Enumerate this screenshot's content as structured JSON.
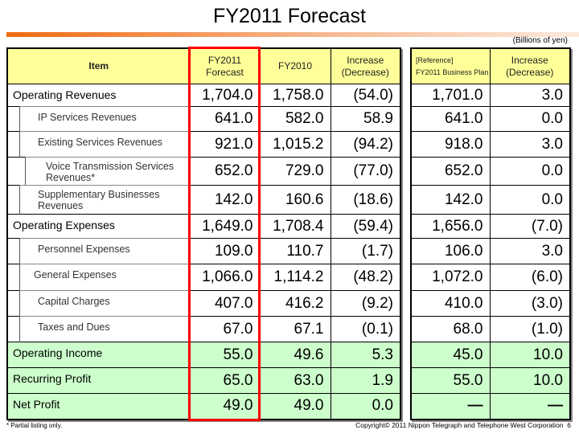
{
  "title": "FY2011 Forecast",
  "unit": "(Billions of yen)",
  "headers": {
    "item": "Item",
    "forecast": "FY2011 Forecast",
    "fy2010": "FY2010",
    "increase": "Increase (Decrease)",
    "reference_line1": "[Reference]",
    "reference_line2": "FY2011 Business Plan",
    "ref_increase": "Increase (Decrease)"
  },
  "rows": [
    {
      "label": "Operating Revenues",
      "forecast": "1,704.0",
      "fy2010": "1,758.0",
      "increase": "(54.0)",
      "plan": "1,701.0",
      "plan_increase": "3.0"
    },
    {
      "label": "IP Services Revenues",
      "forecast": "641.0",
      "fy2010": "582.0",
      "increase": "58.9",
      "plan": "641.0",
      "plan_increase": "0.0"
    },
    {
      "label": "Existing Services Revenues",
      "forecast": "921.0",
      "fy2010": "1,015.2",
      "increase": "(94.2)",
      "plan": "918.0",
      "plan_increase": "3.0"
    },
    {
      "label": "Voice Transmission Services Revenues*",
      "forecast": "652.0",
      "fy2010": "729.0",
      "increase": "(77.0)",
      "plan": "652.0",
      "plan_increase": "0.0"
    },
    {
      "label": "Supplementary Businesses Revenues",
      "forecast": "142.0",
      "fy2010": "160.6",
      "increase": "(18.6)",
      "plan": "142.0",
      "plan_increase": "0.0"
    },
    {
      "label": "Operating Expenses",
      "forecast": "1,649.0",
      "fy2010": "1,708.4",
      "increase": "(59.4)",
      "plan": "1,656.0",
      "plan_increase": "(7.0)"
    },
    {
      "label": "Personnel Expenses",
      "forecast": "109.0",
      "fy2010": "110.7",
      "increase": "(1.7)",
      "plan": "106.0",
      "plan_increase": "3.0"
    },
    {
      "label": "General Expenses",
      "forecast": "1,066.0",
      "fy2010": "1,114.2",
      "increase": "(48.2)",
      "plan": "1,072.0",
      "plan_increase": "(6.0)"
    },
    {
      "label": "Capital Charges",
      "forecast": "407.0",
      "fy2010": "416.2",
      "increase": "(9.2)",
      "plan": "410.0",
      "plan_increase": "(3.0)"
    },
    {
      "label": "Taxes and Dues",
      "forecast": "67.0",
      "fy2010": "67.1",
      "increase": "(0.1)",
      "plan": "68.0",
      "plan_increase": "(1.0)"
    },
    {
      "label": "Operating Income",
      "forecast": "55.0",
      "fy2010": "49.6",
      "increase": "5.3",
      "plan": "45.0",
      "plan_increase": "10.0"
    },
    {
      "label": "Recurring Profit",
      "forecast": "65.0",
      "fy2010": "63.0",
      "increase": "1.9",
      "plan": "55.0",
      "plan_increase": "10.0"
    },
    {
      "label": "Net Profit",
      "forecast": "49.0",
      "fy2010": "49.0",
      "increase": "0.0",
      "plan": "—",
      "plan_increase": "—"
    }
  ],
  "colors": {
    "header": "#ffff99",
    "profit_rows": "#ccffcc",
    "highlight": "#ff0000",
    "accent_bar": "#f06a10"
  },
  "footnote": "* Partial listing only.",
  "copyright": "Copyright© 2011 Nippon Telegraph and Telephone West Corporation",
  "page_number": "6"
}
